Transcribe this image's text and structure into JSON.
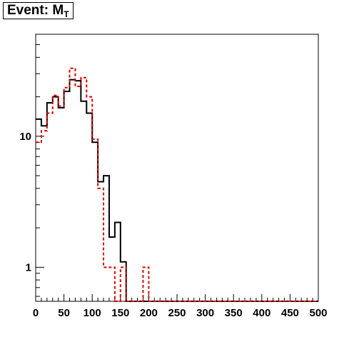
{
  "title": {
    "main": "Event: M",
    "sub": "T"
  },
  "chart_data": {
    "type": "line",
    "title": "Event: M_T",
    "xlabel": "",
    "ylabel": "",
    "y_scale": "log",
    "xlim": [
      0,
      500
    ],
    "ylim": [
      0.55,
      60
    ],
    "grid": false,
    "x_tick_labels": [
      "0",
      "50",
      "100",
      "150",
      "200",
      "250",
      "300",
      "350",
      "400",
      "450",
      "500"
    ],
    "y_tick_labels": [
      {
        "value": 1,
        "label": "1"
      },
      {
        "value": 10,
        "label": "10"
      }
    ],
    "bin_edges": [
      0,
      10,
      20,
      30,
      40,
      50,
      60,
      70,
      80,
      90,
      100,
      110,
      120,
      130,
      140,
      150,
      160,
      170,
      180,
      190,
      200,
      210,
      220,
      230,
      240,
      250,
      260,
      500
    ],
    "series": [
      {
        "style": "solid",
        "color": "#000000",
        "values": [
          13.5,
          12,
          18,
          20,
          16.5,
          22,
          27,
          26.5,
          18.5,
          15,
          9,
          4.5,
          5,
          1.7,
          2.2,
          1.1,
          0.55,
          0.55,
          0.55,
          0.5,
          0.55,
          0.5,
          0.55,
          0.5,
          0.5,
          0.55,
          0.5
        ]
      },
      {
        "style": "dashed",
        "color": "#dd0000",
        "values": [
          9,
          11,
          15,
          20.5,
          17,
          23.5,
          33,
          24,
          28,
          20,
          9.5,
          4,
          1,
          1,
          0.5,
          1,
          0.5,
          0.5,
          0.5,
          1,
          0.5,
          0.5,
          0.5,
          0.5,
          0.5,
          0.5,
          0.5
        ]
      }
    ]
  }
}
